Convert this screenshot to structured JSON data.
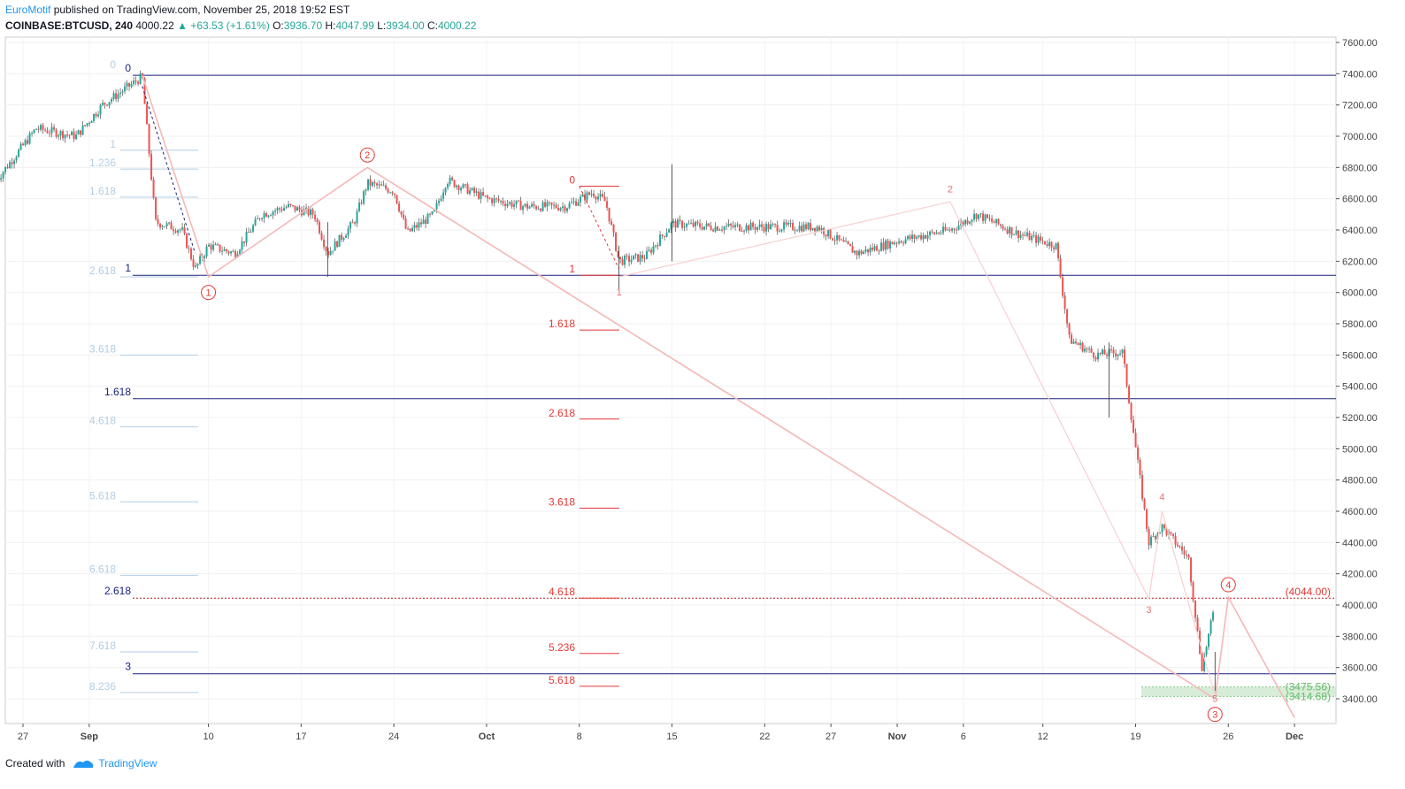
{
  "header": {
    "author": "EuroMotif",
    "published": "published on TradingView.com, November 25, 2018 19:52 EST",
    "symbol": "COINBASE:BTCUSD, 240",
    "last": "4000.22",
    "change_arrow": "▲",
    "change": "+63.53 (+1.61%)",
    "o_label": "O:",
    "o_value": "3936.70",
    "h_label": "H:",
    "h_value": "4047.99",
    "l_label": "L:",
    "l_value": "3934.00",
    "c_label": "C:",
    "c_value": "4000.22"
  },
  "footer": {
    "created_with": "Created with",
    "brand": "TradingView"
  },
  "colors": {
    "up": "#26a69a",
    "down": "#ef5350",
    "navy": "#1a237e",
    "fib_light": "#b3cde3",
    "fib_red": "#e53935",
    "wave": "#f4b8b8",
    "target_zone": "#c8e6c9"
  },
  "chart_data": {
    "type": "candlestick",
    "x_ticks": [
      "27",
      "Sep",
      "10",
      "17",
      "24",
      "Oct",
      "8",
      "15",
      "22",
      "27",
      "Nov",
      "6",
      "12",
      "19",
      "26",
      "Dec"
    ],
    "y_ticks": [
      "7600.00",
      "7400.00",
      "7200.00",
      "7000.00",
      "6800.00",
      "6600.00",
      "6400.00",
      "6200.00",
      "6000.00",
      "5800.00",
      "5600.00",
      "5400.00",
      "5200.00",
      "5000.00",
      "4800.00",
      "4600.00",
      "4400.00",
      "4200.00",
      "4000.00",
      "3800.00",
      "3600.00",
      "3400.00"
    ],
    "ylim": [
      3250,
      7650
    ],
    "price_path": [
      [
        "2018-08-25",
        6720
      ],
      [
        "2018-08-28",
        7050
      ],
      [
        "2018-08-31",
        7000
      ],
      [
        "2018-09-02",
        7200
      ],
      [
        "2018-09-04",
        7320
      ],
      [
        "2018-09-05",
        7380
      ],
      [
        "2018-09-06",
        6450
      ],
      [
        "2018-09-08",
        6400
      ],
      [
        "2018-09-09",
        6150
      ],
      [
        "2018-09-10",
        6300
      ],
      [
        "2018-09-12",
        6250
      ],
      [
        "2018-09-14",
        6500
      ],
      [
        "2018-09-16",
        6550
      ],
      [
        "2018-09-18",
        6500
      ],
      [
        "2018-09-19",
        6250
      ],
      [
        "2018-09-21",
        6450
      ],
      [
        "2018-09-22",
        6700
      ],
      [
        "2018-09-24",
        6650
      ],
      [
        "2018-09-25",
        6380
      ],
      [
        "2018-09-27",
        6500
      ],
      [
        "2018-09-28",
        6720
      ],
      [
        "2018-10-01",
        6600
      ],
      [
        "2018-10-04",
        6550
      ],
      [
        "2018-10-07",
        6550
      ],
      [
        "2018-10-09",
        6640
      ],
      [
        "2018-10-10",
        6580
      ],
      [
        "2018-10-11",
        6200
      ],
      [
        "2018-10-13",
        6230
      ],
      [
        "2018-10-15",
        6440
      ],
      [
        "2018-10-18",
        6420
      ],
      [
        "2018-10-22",
        6420
      ],
      [
        "2018-10-26",
        6420
      ],
      [
        "2018-10-29",
        6250
      ],
      [
        "2018-11-01",
        6330
      ],
      [
        "2018-11-05",
        6400
      ],
      [
        "2018-11-07",
        6500
      ],
      [
        "2018-11-10",
        6380
      ],
      [
        "2018-11-13",
        6300
      ],
      [
        "2018-11-14",
        5700
      ],
      [
        "2018-11-16",
        5600
      ],
      [
        "2018-11-18",
        5620
      ],
      [
        "2018-11-20",
        4400
      ],
      [
        "2018-11-21",
        4500
      ],
      [
        "2018-11-23",
        4300
      ],
      [
        "2018-11-24",
        3600
      ],
      [
        "2018-11-25",
        4000
      ]
    ],
    "horizontal_levels": [
      {
        "label": "0",
        "price": 7390,
        "color": "navy"
      },
      {
        "label": "1",
        "price": 6110,
        "color": "navy"
      },
      {
        "label": "1.618",
        "price": 5320,
        "color": "navy"
      },
      {
        "label": "2.618",
        "price": 4044,
        "color": "navy"
      },
      {
        "label": "3",
        "price": 3560,
        "color": "navy"
      }
    ],
    "fib_ext_left": [
      {
        "label": "0",
        "price": 7420
      },
      {
        "label": "1",
        "price": 6910
      },
      {
        "label": "1.236",
        "price": 6790
      },
      {
        "label": "1.618",
        "price": 6610
      },
      {
        "label": "2.618",
        "price": 6100
      },
      {
        "label": "3.618",
        "price": 5600
      },
      {
        "label": "4.618",
        "price": 5140
      },
      {
        "label": "5.618",
        "price": 4660
      },
      {
        "label": "6.618",
        "price": 4190
      },
      {
        "label": "7.618",
        "price": 3700
      },
      {
        "label": "8.236",
        "price": 3440
      }
    ],
    "fib_ext_mid": [
      {
        "label": "0",
        "price": 6680
      },
      {
        "label": "1",
        "price": 6110
      },
      {
        "label": "1.618",
        "price": 5760
      },
      {
        "label": "2.618",
        "price": 5190
      },
      {
        "label": "3.618",
        "price": 4620
      },
      {
        "label": "4.618",
        "price": 4044
      },
      {
        "label": "5.236",
        "price": 3690
      },
      {
        "label": "5.618",
        "price": 3480
      }
    ],
    "wave_labels_major": [
      {
        "label": "1",
        "date": "2018-09-10",
        "price": 6000
      },
      {
        "label": "2",
        "date": "2018-09-22",
        "price": 6880
      },
      {
        "label": "3",
        "date": "2018-11-25",
        "price": 3300
      },
      {
        "label": "4",
        "date": "2018-11-26",
        "price": 4130
      }
    ],
    "wave_labels_minor": [
      {
        "label": "1",
        "date": "2018-10-11",
        "price": 5980
      },
      {
        "label": "2",
        "date": "2018-11-05",
        "price": 6640
      },
      {
        "label": "3",
        "date": "2018-11-20",
        "price": 3950
      },
      {
        "label": "4",
        "date": "2018-11-21",
        "price": 4670
      },
      {
        "label": "5",
        "date": "2018-11-25",
        "price": 3380
      }
    ],
    "price_labels": [
      {
        "label": "(4044.00)",
        "price": 4044
      },
      {
        "label": "(3475.56)",
        "price": 3475.56
      },
      {
        "label": "(3414.68)",
        "price": 3414.68
      }
    ]
  }
}
